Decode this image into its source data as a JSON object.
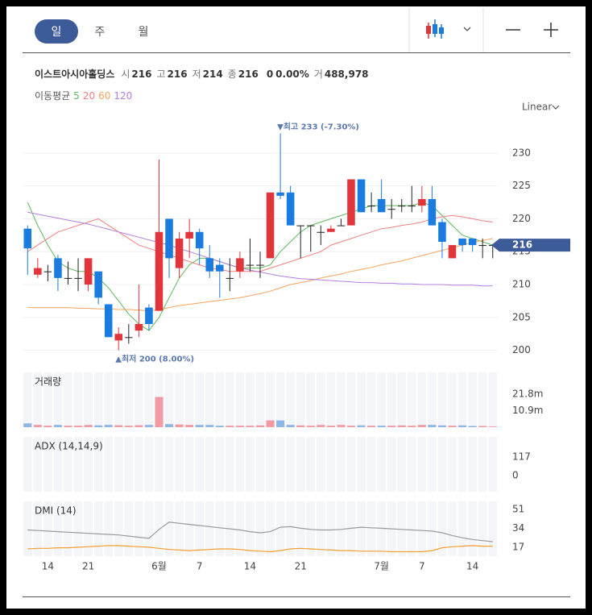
{
  "tabs": [
    "일",
    "주",
    "월"
  ],
  "quote": {
    "name": "이스트아시아홀딩스",
    "fields": [
      {
        "label": "시",
        "value": 216
      },
      {
        "label": "고",
        "value": 216
      },
      {
        "label": "저",
        "value": 214
      },
      {
        "label": "종",
        "value": 216
      }
    ],
    "change": 0,
    "change_pct": "0.00%",
    "volume_label": "거",
    "volume": "488,978"
  },
  "scale_mode": "Linear",
  "chart_data": [
    {
      "type": "candlestick",
      "categories": [
        null,
        null,
        "14",
        null,
        null,
        null,
        "21",
        null,
        null,
        null,
        null,
        null,
        null,
        "6월",
        null,
        null,
        null,
        "7",
        null,
        null,
        null,
        null,
        "14",
        null,
        null,
        null,
        null,
        "21",
        null,
        null,
        null,
        null,
        null,
        null,
        null,
        "7월",
        null,
        null,
        null,
        "7",
        null,
        null,
        null,
        null,
        "14",
        null,
        null
      ],
      "open": [
        218.5,
        211.5,
        212,
        214,
        211,
        211,
        210,
        212,
        207,
        201.5,
        202,
        203,
        206.5,
        206,
        220,
        212.5,
        217,
        218,
        214,
        213,
        211,
        212,
        213,
        213,
        214,
        224,
        224,
        219,
        219,
        218,
        218,
        219,
        219,
        226,
        222,
        223,
        221.5,
        222,
        222,
        222,
        223,
        219.5,
        214,
        217,
        217,
        216,
        216
      ],
      "high": [
        219,
        214,
        213,
        214.5,
        213.5,
        214,
        214,
        212,
        207,
        203.5,
        204,
        210,
        207,
        229,
        220,
        218,
        220,
        218.5,
        216,
        214,
        214,
        215,
        217,
        215,
        224,
        233,
        225,
        219,
        219,
        219,
        219,
        220,
        226,
        226,
        224,
        226,
        223,
        223,
        225,
        225,
        225,
        220,
        216,
        217,
        217,
        217,
        216
      ],
      "low": [
        211.5,
        211,
        210.5,
        209,
        210,
        209,
        209,
        207,
        202,
        200,
        201,
        202,
        203,
        206,
        211,
        211,
        214,
        213,
        211,
        208,
        209,
        211,
        212,
        211,
        214,
        223,
        219,
        214,
        215,
        216,
        218,
        219,
        219,
        221,
        221,
        221,
        220,
        221,
        221,
        221,
        219,
        214,
        214,
        215,
        215,
        214,
        214
      ],
      "close": [
        215.5,
        212.5,
        212,
        211,
        211,
        211,
        214,
        208,
        202,
        202.5,
        202,
        204,
        204,
        218,
        214,
        217,
        218,
        215.5,
        212,
        212,
        211,
        214,
        213,
        213,
        224,
        223.5,
        219,
        219,
        219,
        218,
        218.5,
        219,
        226,
        221,
        222,
        221,
        221.5,
        222,
        222,
        223,
        219,
        216.5,
        216,
        216,
        216,
        216,
        216
      ],
      "up_color": "#e0353b",
      "down_color": "#1a7be0",
      "ylim": [
        197.5,
        235.5
      ],
      "yticks": [
        200,
        205,
        210,
        215,
        220,
        225,
        230
      ],
      "grid": true,
      "last_price": 216,
      "annotations": {
        "high": "▼최고 233 (-7.30%)",
        "low": "▲최저 200 (8.00%)"
      },
      "legend_title": "이동평균",
      "series": [
        {
          "name": "5",
          "color": "#5cb85c",
          "values": [
            222.5,
            219,
            216,
            213.5,
            212.5,
            212,
            212,
            211,
            209.5,
            207.5,
            205.5,
            204,
            203,
            205,
            208,
            211,
            213,
            214,
            214,
            213.5,
            213,
            212.5,
            212.5,
            212.5,
            213,
            215,
            216.5,
            218,
            219,
            219.5,
            220,
            220.5,
            221,
            221.5,
            222,
            222,
            222,
            222,
            222,
            222.5,
            222,
            220.5,
            219,
            217.5,
            217,
            216.5,
            216
          ]
        },
        {
          "name": "20",
          "color": "#f08080",
          "values": [
            215,
            216,
            217,
            218,
            218.5,
            219,
            219.5,
            220,
            219,
            218,
            217,
            216,
            215.5,
            215,
            214.5,
            214,
            213.5,
            213,
            212.5,
            212.3,
            212,
            212,
            212,
            212,
            212.5,
            213,
            213.5,
            214,
            214.5,
            215,
            216,
            216.5,
            217,
            217.5,
            218,
            218.5,
            218.7,
            219,
            219.2,
            219.5,
            220,
            220.3,
            220.5,
            220.3,
            220,
            219.7,
            219.5
          ]
        },
        {
          "name": "60",
          "color": "#f4a460",
          "values": [
            206.5,
            206.5,
            206.5,
            206.5,
            206.5,
            206.4,
            206.4,
            206.3,
            206.3,
            206.2,
            206.2,
            206.1,
            206,
            206.2,
            206.5,
            206.8,
            207,
            207.2,
            207.4,
            207.6,
            207.8,
            208,
            208.3,
            208.6,
            209,
            209.5,
            210,
            210.3,
            210.6,
            211,
            211.3,
            211.6,
            212,
            212.3,
            212.6,
            213,
            213.3,
            213.6,
            214,
            214.4,
            214.8,
            215.2,
            215.6,
            216,
            216.4,
            216.7,
            217
          ]
        },
        {
          "name": "120",
          "color": "#b57edc",
          "values": [
            221,
            220.7,
            220.4,
            220.1,
            219.8,
            219.5,
            219.2,
            218.8,
            218.4,
            218,
            217.6,
            217.2,
            216.8,
            216.4,
            216,
            215.5,
            215,
            214.5,
            214,
            213.5,
            213,
            212.6,
            212.2,
            211.9,
            211.6,
            211.3,
            211.1,
            210.9,
            210.8,
            210.7,
            210.6,
            210.5,
            210.4,
            210.3,
            210.3,
            210.2,
            210.2,
            210.1,
            210.1,
            210,
            210,
            210,
            209.9,
            209.9,
            209.9,
            209.8,
            209.8
          ]
        }
      ]
    },
    {
      "type": "bar",
      "title": "거래량",
      "values": [
        2500000,
        1500000,
        1000000,
        1500000,
        1000000,
        1000000,
        1500000,
        1200000,
        1500000,
        1300000,
        1000000,
        1300000,
        1500000,
        20000000,
        2000000,
        1800000,
        1500000,
        1500000,
        1500000,
        1000000,
        1000000,
        1000000,
        1000000,
        1200000,
        4500000,
        4500000,
        1500000,
        1200000,
        1000000,
        1500000,
        1000000,
        1500000,
        1000000,
        1200000,
        1000000,
        1000000,
        1000000,
        1200000,
        1000000,
        1500000,
        1500000,
        1200000,
        1000000,
        1200000,
        800000,
        800000,
        500000
      ],
      "up_color": "#f29aa3",
      "down_color": "#8db5e8",
      "ylim": [
        0,
        36300000
      ],
      "yticks": [
        {
          "value": 21800000,
          "label": "21.8m"
        },
        {
          "value": 10900000,
          "label": "10.9m"
        }
      ]
    },
    {
      "type": "line",
      "title": "ADX (14,14,9)",
      "ylim": [
        -102,
        244
      ],
      "yticks": [
        117,
        0
      ]
    },
    {
      "type": "line",
      "title": "DMI (14)",
      "ylim": [
        9,
        58.2
      ],
      "yticks": [
        51,
        34,
        17
      ],
      "series": [
        {
          "color": "#9a9a9a",
          "values": [
            32.5,
            32,
            31.5,
            31,
            30.5,
            30,
            29.5,
            29,
            28.5,
            28,
            27,
            26,
            25,
            33,
            39.5,
            38.5,
            37.5,
            36.5,
            35.5,
            34.5,
            33.5,
            32.5,
            31,
            30,
            31,
            35,
            35.5,
            34,
            33,
            32.5,
            32.5,
            33,
            34,
            35,
            34.5,
            34,
            33.5,
            33,
            32.5,
            32,
            31.5,
            30,
            27.5,
            25.5,
            24,
            23,
            22
          ]
        },
        {
          "color": "#f5a030",
          "values": [
            15.5,
            16,
            16,
            16.5,
            16.5,
            17,
            17.5,
            18,
            18.5,
            18.5,
            18,
            17.5,
            17,
            16,
            15,
            14.5,
            14,
            14.5,
            15,
            15.5,
            15.5,
            15,
            14,
            13.5,
            13,
            14,
            15.5,
            16,
            15.5,
            15,
            14.5,
            14,
            14,
            13.5,
            13.5,
            13.5,
            13,
            13,
            13,
            13,
            14,
            16.5,
            17.5,
            18,
            18.5,
            18,
            18
          ]
        }
      ]
    }
  ]
}
